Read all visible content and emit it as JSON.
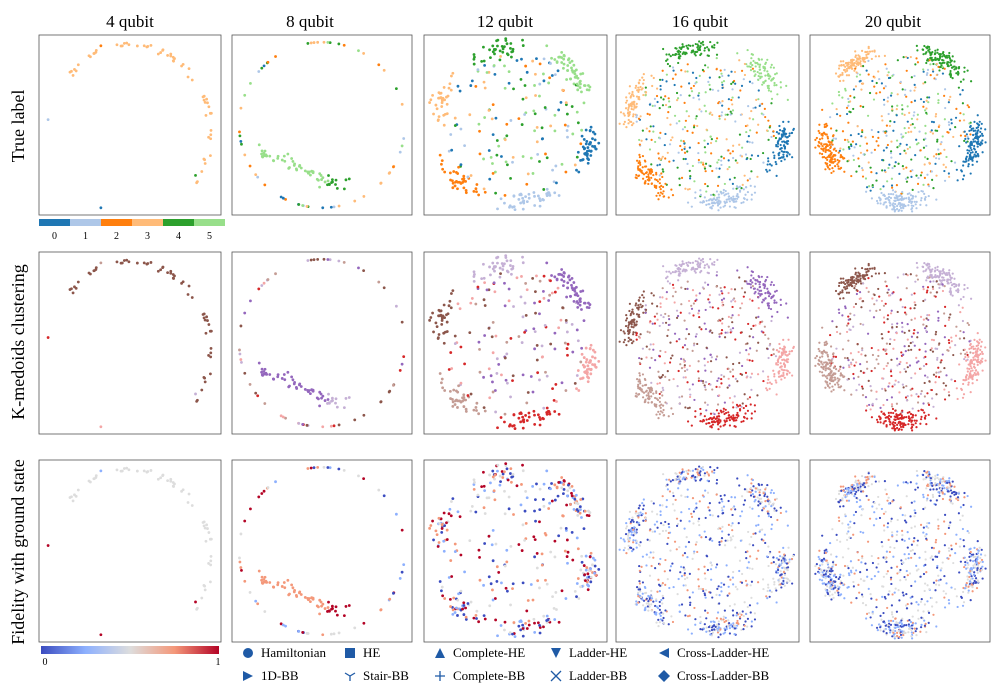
{
  "chart_data": {
    "type": "scatter",
    "title": "",
    "column_titles": [
      "4 qubit",
      "8 qubit",
      "12 qubit",
      "16 qubit",
      "20 qubit"
    ],
    "row_titles": [
      "True label",
      "K-medoids clustering",
      "Fidelity with ground state"
    ],
    "label_colorbar": {
      "categories": [
        "0",
        "1",
        "2",
        "3",
        "4",
        "5"
      ],
      "colors": [
        "#1f77b4",
        "#aec7e8",
        "#ff7f0e",
        "#ffbb78",
        "#2ca02c",
        "#98df8a"
      ]
    },
    "cluster_colors": [
      "#f4a6a6",
      "#d62728",
      "#c49c94",
      "#8c564b",
      "#c5b0d5",
      "#9467bd"
    ],
    "fidelity_colorbar": {
      "ticks": [
        "0",
        "1"
      ],
      "range": [
        0,
        1
      ],
      "colormap": "coolwarm",
      "stops": [
        "#3b4cc0",
        "#8db0fe",
        "#dddddd",
        "#f4987a",
        "#b40426"
      ]
    },
    "legend": [
      {
        "label": "Hamiltonian",
        "marker": "circle-icon"
      },
      {
        "label": "HE",
        "marker": "square-icon"
      },
      {
        "label": "Complete-HE",
        "marker": "triangle-up-icon"
      },
      {
        "label": "Ladder-HE",
        "marker": "triangle-down-icon"
      },
      {
        "label": "Cross-Ladder-HE",
        "marker": "triangle-left-icon"
      },
      {
        "label": "1D-BB",
        "marker": "triangle-right-icon"
      },
      {
        "label": "Stair-BB",
        "marker": "tri-down-icon"
      },
      {
        "label": "Complete-BB",
        "marker": "plus-icon"
      },
      {
        "label": "Ladder-BB",
        "marker": "x-icon"
      },
      {
        "label": "Cross-Ladder-BB",
        "marker": "diamond-icon"
      }
    ],
    "panels": [
      {
        "qubits": 4,
        "description": "sparse arc of points, mostly label 3",
        "points": 60
      },
      {
        "qubits": 8,
        "description": "diagonal band of label 5 points plus scattered outliers",
        "points": 120
      },
      {
        "qubits": 12,
        "description": "ring of dense clusters",
        "points": 400
      },
      {
        "qubits": 16,
        "description": "large ring with dense interior",
        "points": 900
      },
      {
        "qubits": 20,
        "description": "star-shaped ring with dense cusps",
        "points": 1000
      }
    ]
  }
}
